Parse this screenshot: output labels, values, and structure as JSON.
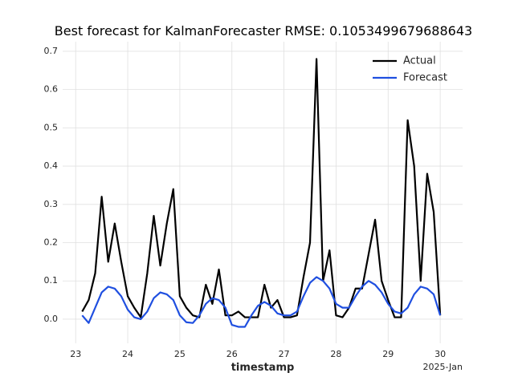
{
  "chart_data": {
    "type": "line",
    "title": "Best forecast for KalmanForecaster RMSE: 0.1053499679688643",
    "xlabel": "timestamp",
    "annotation": "2025-Jan",
    "x": [
      23.125,
      23.25,
      23.375,
      23.5,
      23.625,
      23.75,
      23.875,
      24.0,
      24.125,
      24.25,
      24.375,
      24.5,
      24.625,
      24.75,
      24.875,
      25.0,
      25.125,
      25.25,
      25.375,
      25.5,
      25.625,
      25.75,
      25.875,
      26.0,
      26.125,
      26.25,
      26.375,
      26.5,
      26.625,
      26.75,
      26.875,
      27.0,
      27.125,
      27.25,
      27.375,
      27.5,
      27.625,
      27.75,
      27.875,
      28.0,
      28.125,
      28.25,
      28.375,
      28.5,
      28.625,
      28.75,
      28.875,
      29.0,
      29.125,
      29.25,
      29.375,
      29.5,
      29.625,
      29.75,
      29.875,
      30.0
    ],
    "series": [
      {
        "name": "Actual",
        "color": "#000000",
        "values": [
          0.02,
          0.05,
          0.12,
          0.32,
          0.15,
          0.25,
          0.15,
          0.06,
          0.03,
          0.005,
          0.12,
          0.27,
          0.14,
          0.25,
          0.34,
          0.06,
          0.03,
          0.01,
          0.005,
          0.09,
          0.04,
          0.13,
          0.01,
          0.01,
          0.02,
          0.005,
          0.005,
          0.005,
          0.09,
          0.03,
          0.05,
          0.005,
          0.005,
          0.01,
          0.11,
          0.2,
          0.68,
          0.1,
          0.18,
          0.01,
          0.005,
          0.03,
          0.08,
          0.08,
          0.17,
          0.26,
          0.1,
          0.05,
          0.005,
          0.005,
          0.52,
          0.4,
          0.1,
          0.38,
          0.28,
          0.01
        ]
      },
      {
        "name": "Forecast",
        "color": "#1f4fe0",
        "values": [
          0.01,
          -0.01,
          0.03,
          0.07,
          0.085,
          0.08,
          0.06,
          0.025,
          0.005,
          0,
          0.02,
          0.055,
          0.07,
          0.065,
          0.05,
          0.01,
          -0.008,
          -0.01,
          0.01,
          0.04,
          0.055,
          0.05,
          0.03,
          -0.015,
          -0.02,
          -0.02,
          0.01,
          0.035,
          0.045,
          0.035,
          0.015,
          0.01,
          0.01,
          0.02,
          0.06,
          0.095,
          0.11,
          0.1,
          0.08,
          0.04,
          0.03,
          0.03,
          0.06,
          0.085,
          0.1,
          0.09,
          0.07,
          0.04,
          0.02,
          0.015,
          0.03,
          0.065,
          0.085,
          0.08,
          0.065,
          0.01
        ]
      }
    ],
    "xlim": [
      22.75,
      30.43
    ],
    "ylim": [
      -0.063,
      0.725
    ],
    "xticks": [
      23,
      24,
      25,
      26,
      27,
      28,
      29,
      30
    ],
    "yticks": [
      {
        "value": 0,
        "label": "0.0"
      },
      0.1,
      0.2,
      0.3,
      0.4,
      0.5,
      0.6,
      0.7
    ],
    "grid": true,
    "legend": "upper right"
  }
}
